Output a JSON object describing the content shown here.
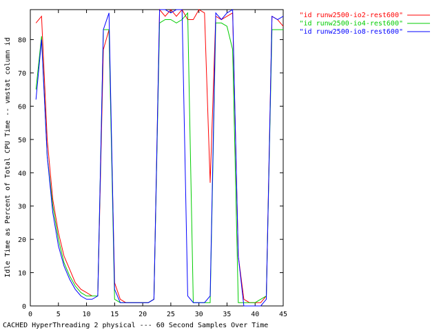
{
  "chart_data": {
    "type": "line",
    "title": "",
    "xlabel": "CACHED HyperThreading 2 physical --- 60 Second Samples Over Time",
    "ylabel": "Idle Time as Percent of Total CPU Time -- vmstat column id",
    "xlim": [
      0,
      45
    ],
    "ylim": [
      0,
      89
    ],
    "x_ticks": [
      "0",
      "5",
      "10",
      "15",
      "20",
      "25",
      "30",
      "35",
      "40",
      "45"
    ],
    "y_ticks": [
      "0",
      "10",
      "20",
      "30",
      "40",
      "50",
      "60",
      "70",
      "80"
    ],
    "grid": false,
    "legend_position": "top-right",
    "series": [
      {
        "name": "\"id runw2500-io2-rest600\"",
        "color": "#ff0000",
        "x": [
          1,
          2,
          3,
          4,
          5,
          6,
          7,
          8,
          9,
          10,
          11,
          12,
          13,
          14,
          15,
          16,
          17,
          18,
          19,
          20,
          21,
          22,
          23,
          24,
          25,
          26,
          27,
          28,
          29,
          30,
          31,
          32,
          33,
          34,
          35,
          36,
          37,
          38,
          39,
          40,
          41,
          42,
          43,
          44,
          45
        ],
        "y": [
          85,
          87,
          50,
          32,
          22,
          15,
          11,
          7,
          5,
          4,
          3,
          3,
          77,
          83,
          7,
          2,
          1,
          1,
          1,
          1,
          1,
          2,
          89,
          87,
          89,
          87,
          89,
          86,
          86,
          89,
          88,
          37,
          87,
          86,
          87,
          88,
          15,
          2,
          1,
          1,
          1,
          3,
          87,
          86,
          84
        ]
      },
      {
        "name": "\"id runw2500-io4-rest600\"",
        "color": "#00cc00",
        "x": [
          1,
          2,
          3,
          4,
          5,
          6,
          7,
          8,
          9,
          10,
          11,
          12,
          13,
          14,
          15,
          16,
          17,
          18,
          19,
          20,
          21,
          22,
          23,
          24,
          25,
          26,
          27,
          28,
          29,
          30,
          31,
          32,
          33,
          34,
          35,
          36,
          37,
          38,
          39,
          40,
          41,
          42,
          43,
          44,
          45
        ],
        "y": [
          65,
          81,
          45,
          30,
          20,
          13,
          9,
          6,
          4,
          3,
          3,
          3,
          83,
          83,
          2,
          1,
          1,
          1,
          1,
          1,
          1,
          2,
          85,
          86,
          86,
          85,
          86,
          88,
          1,
          1,
          1,
          1,
          85,
          85,
          84,
          77,
          1,
          1,
          1,
          1,
          2,
          3,
          83,
          83,
          83
        ]
      },
      {
        "name": "\"id runw2500-io8-rest600\"",
        "color": "#0000ff",
        "x": [
          1,
          2,
          3,
          4,
          5,
          6,
          7,
          8,
          9,
          10,
          11,
          12,
          13,
          14,
          15,
          16,
          17,
          18,
          19,
          20,
          21,
          22,
          23,
          24,
          25,
          26,
          27,
          28,
          29,
          30,
          31,
          32,
          33,
          34,
          35,
          36,
          37,
          38,
          39,
          40,
          41,
          42,
          43,
          44,
          45
        ],
        "y": [
          62,
          80,
          45,
          28,
          18,
          12,
          8,
          5,
          3,
          2,
          2,
          3,
          83,
          88,
          5,
          1,
          1,
          1,
          1,
          1,
          1,
          2,
          89,
          89,
          88,
          89,
          89,
          3,
          1,
          1,
          1,
          3,
          88,
          86,
          88,
          89,
          15,
          0,
          0,
          0,
          0,
          2,
          87,
          86,
          87
        ]
      }
    ]
  }
}
